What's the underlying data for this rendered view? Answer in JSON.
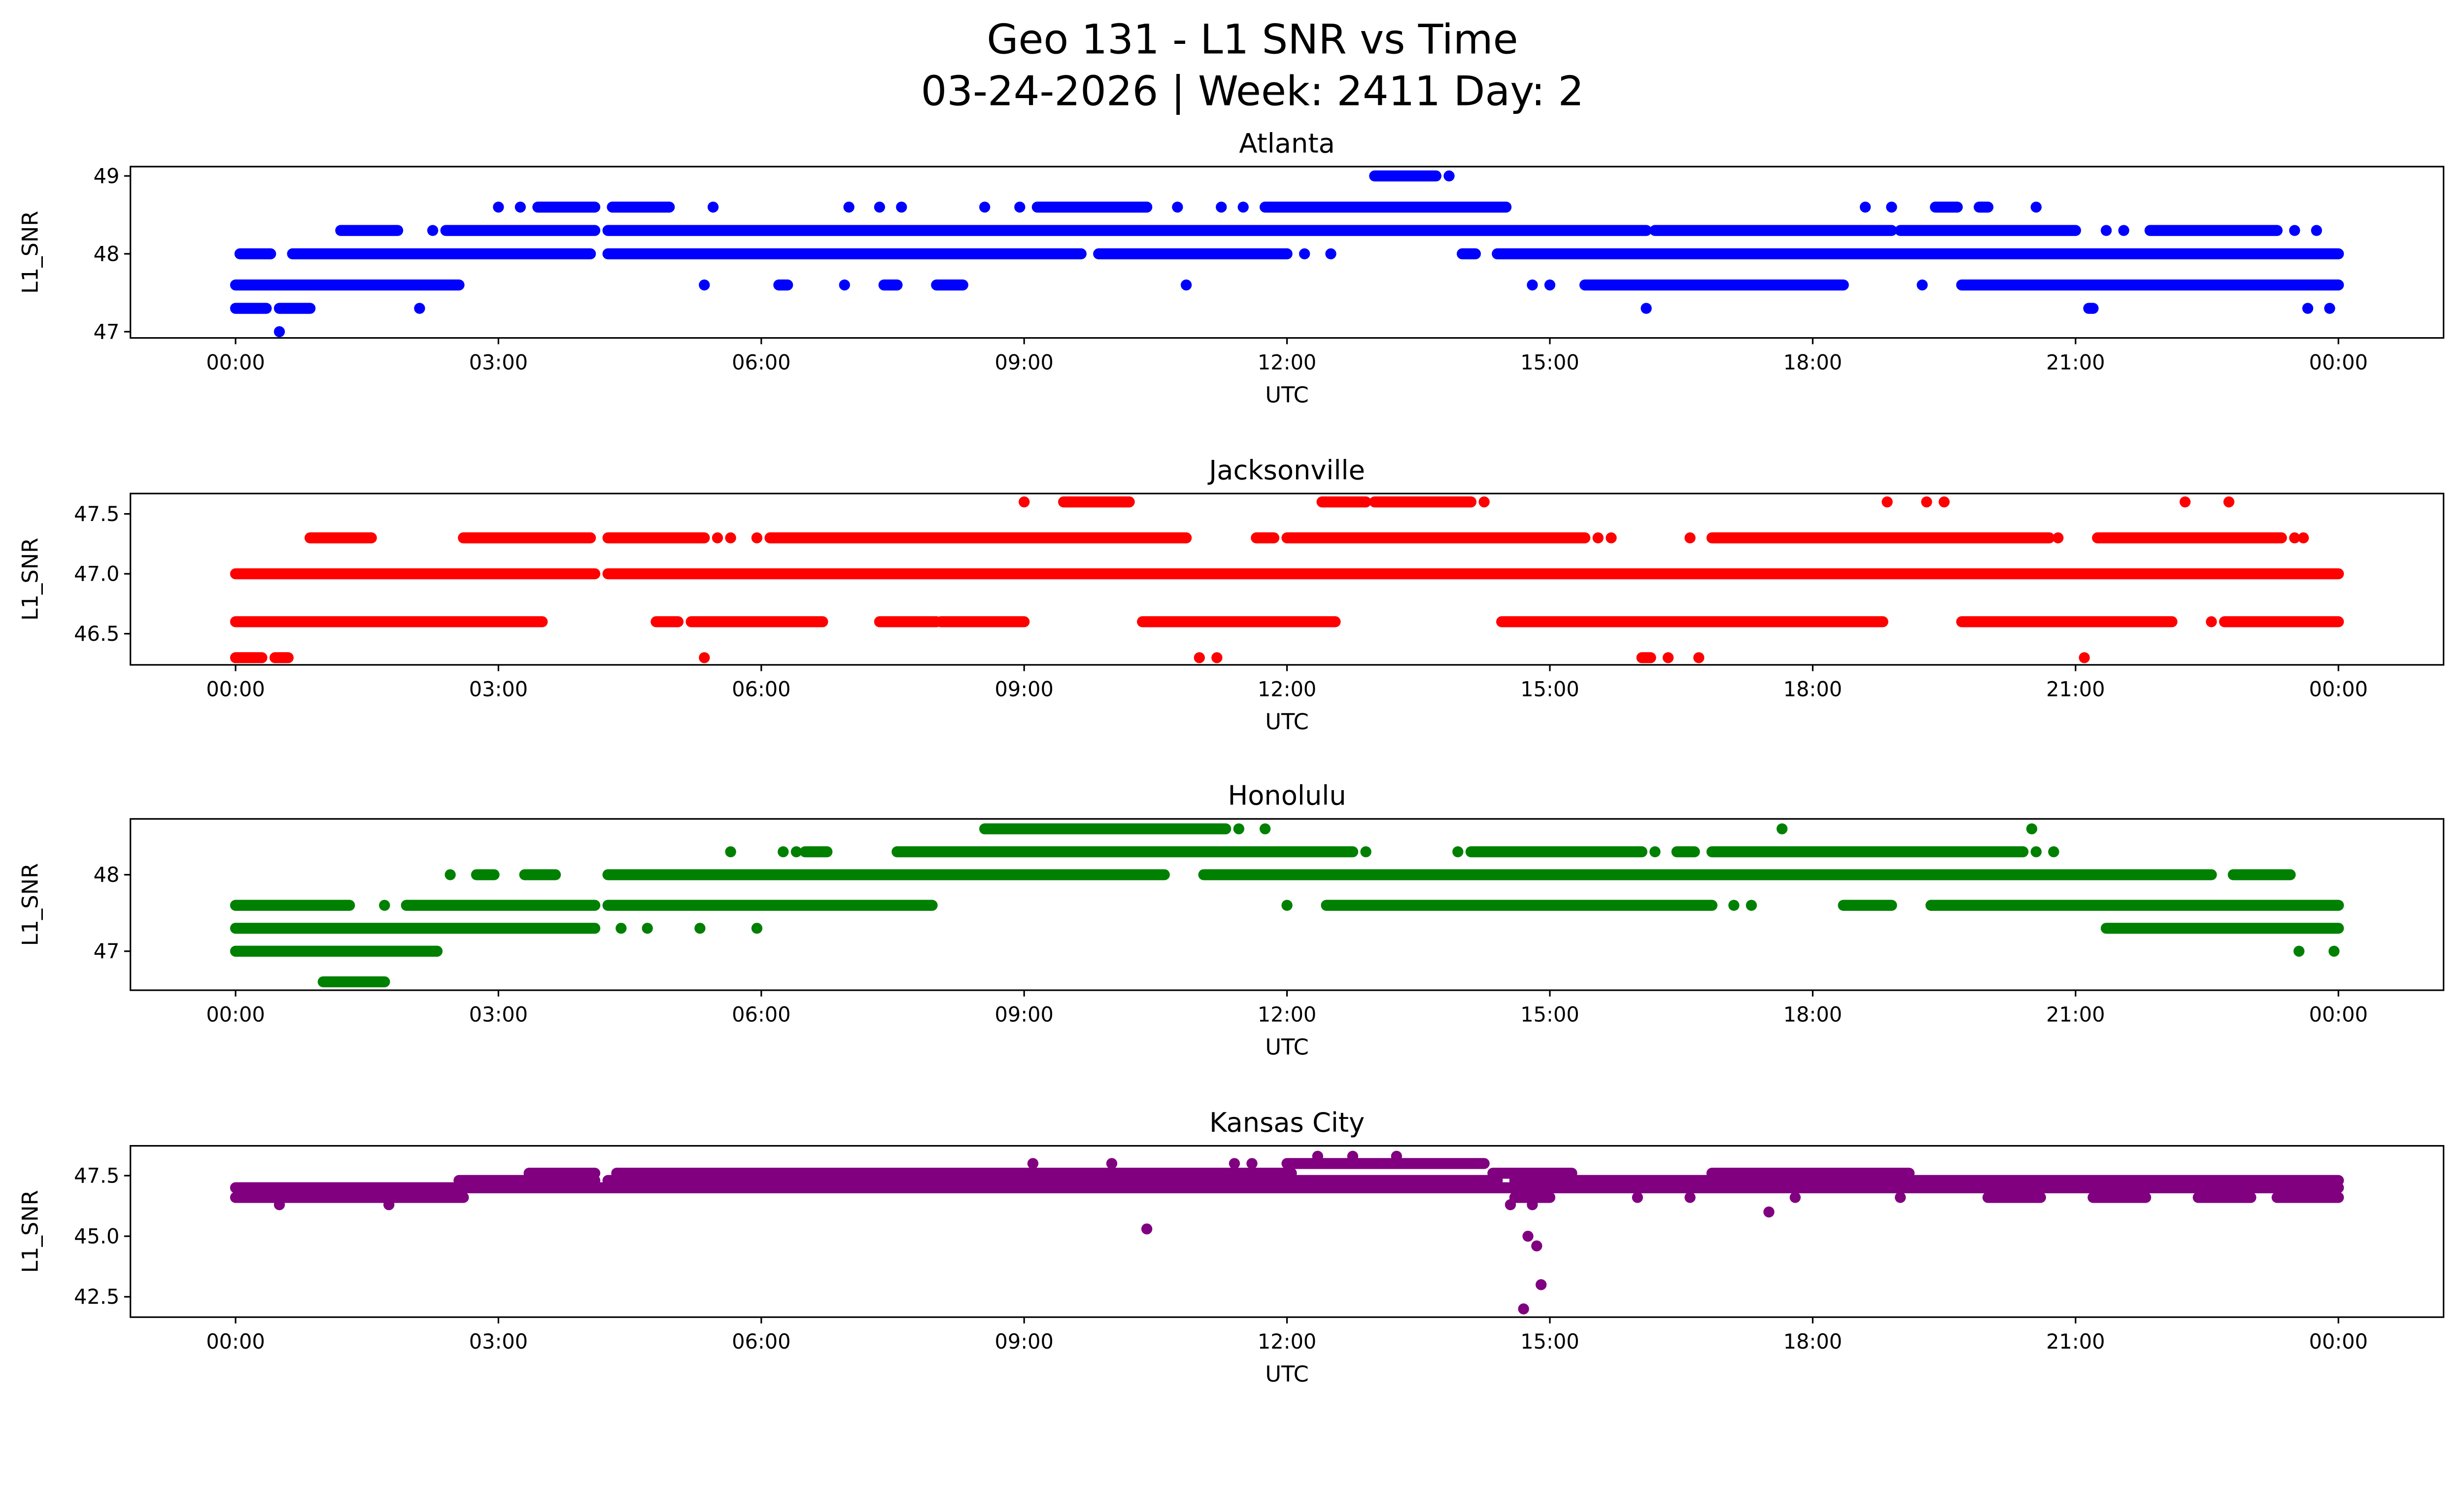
{
  "title_line1": "Geo 131 - L1 SNR vs Time",
  "title_line2": "03-24-2026 | Week: 2411 Day: 2",
  "chart_data": [
    {
      "type": "scatter",
      "title": "Atlanta",
      "xlabel": "UTC",
      "ylabel": "L1_SNR",
      "color": "#0000ff",
      "xlim_hours": [
        -1.2,
        25.2
      ],
      "ylim": [
        46.92,
        49.12
      ],
      "xticks": [
        {
          "h": 0,
          "label": "00:00"
        },
        {
          "h": 3,
          "label": "03:00"
        },
        {
          "h": 6,
          "label": "06:00"
        },
        {
          "h": 9,
          "label": "09:00"
        },
        {
          "h": 12,
          "label": "12:00"
        },
        {
          "h": 15,
          "label": "15:00"
        },
        {
          "h": 18,
          "label": "18:00"
        },
        {
          "h": 21,
          "label": "21:00"
        },
        {
          "h": 24,
          "label": "00:00"
        }
      ],
      "yticks": [
        {
          "v": 47,
          "label": "47"
        },
        {
          "v": 48,
          "label": "48"
        },
        {
          "v": 49,
          "label": "49"
        }
      ],
      "runs": [
        [
          49.0,
          13.0,
          13.7
        ],
        [
          48.6,
          3.45,
          4.1
        ],
        [
          48.6,
          4.3,
          4.95
        ],
        [
          48.6,
          9.15,
          10.4
        ],
        [
          48.6,
          11.75,
          14.5
        ],
        [
          48.6,
          19.4,
          19.65
        ],
        [
          48.6,
          19.9,
          20.0
        ],
        [
          48.3,
          1.2,
          1.85
        ],
        [
          48.3,
          2.4,
          4.1
        ],
        [
          48.3,
          4.25,
          16.1
        ],
        [
          48.3,
          16.2,
          18.9
        ],
        [
          48.3,
          19.0,
          21.0
        ],
        [
          48.3,
          21.85,
          23.3
        ],
        [
          48.0,
          0.05,
          0.4
        ],
        [
          48.0,
          0.65,
          4.05
        ],
        [
          48.0,
          4.25,
          9.65
        ],
        [
          48.0,
          9.85,
          12.0
        ],
        [
          48.0,
          14.0,
          14.15
        ],
        [
          48.0,
          14.4,
          24.0
        ],
        [
          47.6,
          0.0,
          2.55
        ],
        [
          47.6,
          6.2,
          6.3
        ],
        [
          47.6,
          7.4,
          7.55
        ],
        [
          47.6,
          8.0,
          8.3
        ],
        [
          47.6,
          15.4,
          18.35
        ],
        [
          47.6,
          19.7,
          24.0
        ],
        [
          47.3,
          0.0,
          0.35
        ],
        [
          47.3,
          0.5,
          0.85
        ],
        [
          47.3,
          21.15,
          21.2
        ]
      ],
      "points": [
        [
          13.85,
          49.0
        ],
        [
          3.0,
          48.6
        ],
        [
          3.25,
          48.6
        ],
        [
          5.45,
          48.6
        ],
        [
          7.0,
          48.6
        ],
        [
          7.35,
          48.6
        ],
        [
          7.6,
          48.6
        ],
        [
          8.55,
          48.6
        ],
        [
          8.95,
          48.6
        ],
        [
          10.75,
          48.6
        ],
        [
          11.25,
          48.6
        ],
        [
          11.5,
          48.6
        ],
        [
          18.6,
          48.6
        ],
        [
          18.9,
          48.6
        ],
        [
          20.55,
          48.6
        ],
        [
          2.25,
          48.3
        ],
        [
          21.35,
          48.3
        ],
        [
          21.55,
          48.3
        ],
        [
          23.5,
          48.3
        ],
        [
          23.75,
          48.3
        ],
        [
          12.2,
          48.0
        ],
        [
          12.5,
          48.0
        ],
        [
          5.35,
          47.6
        ],
        [
          6.95,
          47.6
        ],
        [
          10.85,
          47.6
        ],
        [
          14.8,
          47.6
        ],
        [
          15.0,
          47.6
        ],
        [
          19.25,
          47.6
        ],
        [
          2.1,
          47.3
        ],
        [
          16.1,
          47.3
        ],
        [
          23.65,
          47.3
        ],
        [
          23.9,
          47.3
        ],
        [
          0.5,
          47.0
        ]
      ]
    },
    {
      "type": "scatter",
      "title": "Jacksonville",
      "xlabel": "UTC",
      "ylabel": "L1_SNR",
      "color": "#ff0000",
      "xlim_hours": [
        -1.2,
        25.2
      ],
      "ylim": [
        46.24,
        47.67
      ],
      "xticks": [
        {
          "h": 0,
          "label": "00:00"
        },
        {
          "h": 3,
          "label": "03:00"
        },
        {
          "h": 6,
          "label": "06:00"
        },
        {
          "h": 9,
          "label": "09:00"
        },
        {
          "h": 12,
          "label": "12:00"
        },
        {
          "h": 15,
          "label": "15:00"
        },
        {
          "h": 18,
          "label": "18:00"
        },
        {
          "h": 21,
          "label": "21:00"
        },
        {
          "h": 24,
          "label": "00:00"
        }
      ],
      "yticks": [
        {
          "v": 46.5,
          "label": "46.5"
        },
        {
          "v": 47.0,
          "label": "47.0"
        },
        {
          "v": 47.5,
          "label": "47.5"
        }
      ],
      "runs": [
        [
          47.6,
          9.45,
          10.2
        ],
        [
          47.6,
          12.4,
          12.9
        ],
        [
          47.6,
          13.0,
          14.1
        ],
        [
          47.3,
          0.85,
          1.55
        ],
        [
          47.3,
          2.6,
          4.05
        ],
        [
          47.3,
          4.25,
          5.35
        ],
        [
          47.3,
          6.1,
          10.85
        ],
        [
          47.3,
          11.65,
          11.85
        ],
        [
          47.3,
          12.0,
          15.4
        ],
        [
          47.3,
          16.85,
          20.7
        ],
        [
          47.3,
          21.25,
          23.35
        ],
        [
          47.0,
          0.0,
          4.1
        ],
        [
          47.0,
          4.25,
          24.0
        ],
        [
          46.6,
          0.0,
          3.5
        ],
        [
          46.6,
          4.8,
          5.05
        ],
        [
          46.6,
          5.2,
          6.7
        ],
        [
          46.6,
          7.35,
          8.0
        ],
        [
          46.6,
          8.05,
          9.0
        ],
        [
          46.6,
          10.35,
          12.55
        ],
        [
          46.6,
          14.45,
          18.8
        ],
        [
          46.6,
          19.7,
          22.1
        ],
        [
          46.6,
          22.7,
          24.0
        ],
        [
          46.3,
          0.0,
          0.3
        ],
        [
          46.3,
          0.45,
          0.6
        ],
        [
          46.3,
          16.05,
          16.15
        ]
      ],
      "points": [
        [
          9.0,
          47.6
        ],
        [
          14.25,
          47.6
        ],
        [
          18.85,
          47.6
        ],
        [
          19.3,
          47.6
        ],
        [
          19.5,
          47.6
        ],
        [
          22.25,
          47.6
        ],
        [
          22.75,
          47.6
        ],
        [
          5.5,
          47.3
        ],
        [
          5.65,
          47.3
        ],
        [
          5.95,
          47.3
        ],
        [
          15.55,
          47.3
        ],
        [
          15.7,
          47.3
        ],
        [
          16.6,
          47.3
        ],
        [
          20.8,
          47.3
        ],
        [
          23.5,
          47.3
        ],
        [
          23.6,
          47.3
        ],
        [
          22.55,
          46.6
        ],
        [
          5.35,
          46.3
        ],
        [
          11.0,
          46.3
        ],
        [
          11.2,
          46.3
        ],
        [
          16.35,
          46.3
        ],
        [
          16.7,
          46.3
        ],
        [
          21.1,
          46.3
        ]
      ]
    },
    {
      "type": "scatter",
      "title": "Honolulu",
      "xlabel": "UTC",
      "ylabel": "L1_SNR",
      "color": "#008000",
      "xlim_hours": [
        -1.2,
        25.2
      ],
      "ylim": [
        46.49,
        48.73
      ],
      "xticks": [
        {
          "h": 0,
          "label": "00:00"
        },
        {
          "h": 3,
          "label": "03:00"
        },
        {
          "h": 6,
          "label": "06:00"
        },
        {
          "h": 9,
          "label": "09:00"
        },
        {
          "h": 12,
          "label": "12:00"
        },
        {
          "h": 15,
          "label": "15:00"
        },
        {
          "h": 18,
          "label": "18:00"
        },
        {
          "h": 21,
          "label": "21:00"
        },
        {
          "h": 24,
          "label": "00:00"
        }
      ],
      "yticks": [
        {
          "v": 47,
          "label": "47"
        },
        {
          "v": 48,
          "label": "48"
        }
      ],
      "runs": [
        [
          48.6,
          8.55,
          11.3
        ],
        [
          48.3,
          6.5,
          6.75
        ],
        [
          48.3,
          7.55,
          12.75
        ],
        [
          48.3,
          14.1,
          16.05
        ],
        [
          48.3,
          16.45,
          16.65
        ],
        [
          48.3,
          16.85,
          20.4
        ],
        [
          48.0,
          2.75,
          2.95
        ],
        [
          48.0,
          3.3,
          3.65
        ],
        [
          48.0,
          4.25,
          10.6
        ],
        [
          48.0,
          11.05,
          22.55
        ],
        [
          48.0,
          22.8,
          23.45
        ],
        [
          47.6,
          0.0,
          1.3
        ],
        [
          47.6,
          1.95,
          4.1
        ],
        [
          47.6,
          4.25,
          7.95
        ],
        [
          47.6,
          12.45,
          16.85
        ],
        [
          47.6,
          18.35,
          18.9
        ],
        [
          47.6,
          19.35,
          24.0
        ],
        [
          47.3,
          0.0,
          4.1
        ],
        [
          47.3,
          21.35,
          24.0
        ],
        [
          47.0,
          0.0,
          2.3
        ],
        [
          46.6,
          1.0,
          1.7
        ]
      ],
      "points": [
        [
          11.45,
          48.6
        ],
        [
          11.75,
          48.6
        ],
        [
          17.65,
          48.6
        ],
        [
          20.5,
          48.6
        ],
        [
          5.65,
          48.3
        ],
        [
          6.25,
          48.3
        ],
        [
          6.4,
          48.3
        ],
        [
          12.9,
          48.3
        ],
        [
          13.95,
          48.3
        ],
        [
          16.2,
          48.3
        ],
        [
          20.55,
          48.3
        ],
        [
          20.75,
          48.3
        ],
        [
          2.45,
          48.0
        ],
        [
          1.7,
          47.6
        ],
        [
          12.0,
          47.6
        ],
        [
          17.1,
          47.6
        ],
        [
          17.3,
          47.6
        ],
        [
          4.4,
          47.3
        ],
        [
          4.7,
          47.3
        ],
        [
          5.3,
          47.3
        ],
        [
          5.95,
          47.3
        ],
        [
          23.55,
          47.0
        ],
        [
          23.95,
          47.0
        ]
      ]
    },
    {
      "type": "scatter",
      "title": "Kansas City",
      "xlabel": "UTC",
      "ylabel": "L1_SNR",
      "color": "#800080",
      "xlim_hours": [
        -1.2,
        25.2
      ],
      "ylim": [
        41.66,
        48.73
      ],
      "xticks": [
        {
          "h": 0,
          "label": "00:00"
        },
        {
          "h": 3,
          "label": "03:00"
        },
        {
          "h": 6,
          "label": "06:00"
        },
        {
          "h": 9,
          "label": "09:00"
        },
        {
          "h": 12,
          "label": "12:00"
        },
        {
          "h": 15,
          "label": "15:00"
        },
        {
          "h": 18,
          "label": "18:00"
        },
        {
          "h": 21,
          "label": "21:00"
        },
        {
          "h": 24,
          "label": "00:00"
        }
      ],
      "yticks": [
        {
          "v": 42.5,
          "label": "42.5"
        },
        {
          "v": 45.0,
          "label": "45.0"
        },
        {
          "v": 47.5,
          "label": "47.5"
        }
      ],
      "runs": [
        [
          46.6,
          0.0,
          2.6
        ],
        [
          46.6,
          14.6,
          15.0
        ],
        [
          46.6,
          20.0,
          20.6
        ],
        [
          46.6,
          21.2,
          21.8
        ],
        [
          46.6,
          22.4,
          23.0
        ],
        [
          46.6,
          23.3,
          24.0
        ],
        [
          47.0,
          0.0,
          24.0
        ],
        [
          47.3,
          2.55,
          4.1
        ],
        [
          47.3,
          4.25,
          10.45
        ],
        [
          47.3,
          10.5,
          14.4
        ],
        [
          47.3,
          14.6,
          24.0
        ],
        [
          47.6,
          3.35,
          4.1
        ],
        [
          47.6,
          4.35,
          9.9
        ],
        [
          47.6,
          9.9,
          12.05
        ],
        [
          47.6,
          14.35,
          15.25
        ],
        [
          47.6,
          16.85,
          19.1
        ],
        [
          48.0,
          12.0,
          14.25
        ]
      ],
      "points": [
        [
          9.1,
          48.0
        ],
        [
          10.0,
          48.0
        ],
        [
          11.4,
          48.0
        ],
        [
          11.6,
          48.0
        ],
        [
          12.35,
          48.3
        ],
        [
          12.75,
          48.3
        ],
        [
          13.25,
          48.3
        ],
        [
          0.5,
          46.3
        ],
        [
          1.75,
          46.3
        ],
        [
          14.55,
          46.3
        ],
        [
          14.8,
          46.3
        ],
        [
          16.0,
          46.6
        ],
        [
          16.6,
          46.6
        ],
        [
          17.8,
          46.6
        ],
        [
          19.0,
          46.6
        ],
        [
          10.4,
          45.3
        ],
        [
          17.5,
          46.0
        ],
        [
          14.75,
          45.0
        ],
        [
          14.85,
          44.6
        ],
        [
          14.9,
          43.0
        ],
        [
          14.7,
          42.0
        ]
      ]
    }
  ]
}
